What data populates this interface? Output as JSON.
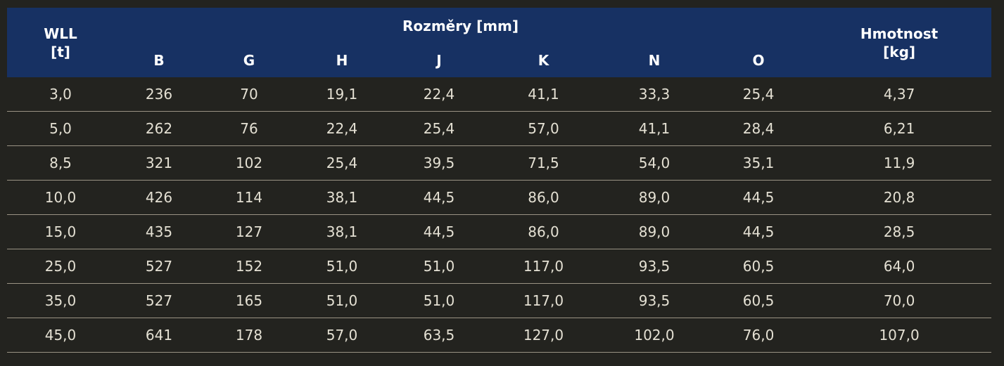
{
  "table": {
    "header": {
      "wll_line1": "WLL",
      "wll_line2": "[t]",
      "group_label": "Rozměry [mm]",
      "mass_line1": "Hmotnost",
      "mass_line2": "[kg]",
      "columns": [
        "B",
        "G",
        "H",
        "J",
        "K",
        "N",
        "O"
      ]
    },
    "rows": [
      [
        "3,0",
        "236",
        "70",
        "19,1",
        "22,4",
        "41,1",
        "33,3",
        "25,4",
        "4,37"
      ],
      [
        "5,0",
        "262",
        "76",
        "22,4",
        "25,4",
        "57,0",
        "41,1",
        "28,4",
        "6,21"
      ],
      [
        "8,5",
        "321",
        "102",
        "25,4",
        "39,5",
        "71,5",
        "54,0",
        "35,1",
        "11,9"
      ],
      [
        "10,0",
        "426",
        "114",
        "38,1",
        "44,5",
        "86,0",
        "89,0",
        "44,5",
        "20,8"
      ],
      [
        "15,0",
        "435",
        "127",
        "38,1",
        "44,5",
        "86,0",
        "89,0",
        "44,5",
        "28,5"
      ],
      [
        "25,0",
        "527",
        "152",
        "51,0",
        "51,0",
        "117,0",
        "93,5",
        "60,5",
        "64,0"
      ],
      [
        "35,0",
        "527",
        "165",
        "51,0",
        "51,0",
        "117,0",
        "93,5",
        "60,5",
        "70,0"
      ],
      [
        "45,0",
        "641",
        "178",
        "57,0",
        "63,5",
        "127,0",
        "102,0",
        "76,0",
        "107,0"
      ]
    ]
  },
  "colors": {
    "background": "#23231f",
    "header_background": "#173163",
    "header_text": "#ffffff",
    "cell_text": "#e4e0d3",
    "row_divider": "#9a9384"
  }
}
